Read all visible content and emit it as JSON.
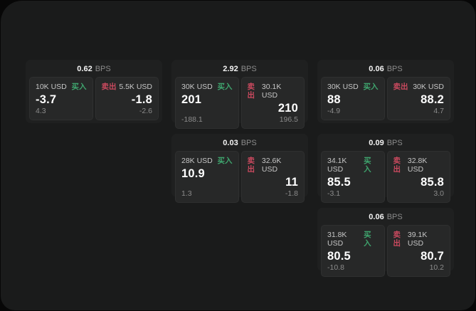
{
  "labels": {
    "bps_unit": "BPS",
    "buy_label": "买入",
    "sell_label": "卖出"
  },
  "colors": {
    "buy_green": "#3fa56e",
    "sell_red": "#c9495e",
    "window_bg": "#1a1b1b",
    "card_bg": "#1f2020",
    "panel_bg": "#272828"
  },
  "cards": [
    {
      "row": 1,
      "col": 1,
      "bps": "0.62",
      "buy": {
        "amount": "10K USD",
        "value": "-3.7",
        "delta": "4.3"
      },
      "sell": {
        "amount": "5.5K USD",
        "value": "-1.8",
        "delta": "-2.6"
      }
    },
    {
      "row": 1,
      "col": 2,
      "bps": "2.92",
      "buy": {
        "amount": "30K USD",
        "value": "201",
        "delta": "-188.1"
      },
      "sell": {
        "amount": "30.1K USD",
        "value": "210",
        "delta": "196.5"
      }
    },
    {
      "row": 1,
      "col": 3,
      "bps": "0.06",
      "buy": {
        "amount": "30K USD",
        "value": "88",
        "delta": "-4.9"
      },
      "sell": {
        "amount": "30K USD",
        "value": "88.2",
        "delta": "4.7"
      }
    },
    {
      "row": 2,
      "col": 2,
      "bps": "0.03",
      "buy": {
        "amount": "28K USD",
        "value": "10.9",
        "delta": "1.3"
      },
      "sell": {
        "amount": "32.6K USD",
        "value": "11",
        "delta": "-1.8"
      }
    },
    {
      "row": 2,
      "col": 3,
      "bps": "0.09",
      "buy": {
        "amount": "34.1K USD",
        "value": "85.5",
        "delta": "-3.1"
      },
      "sell": {
        "amount": "32.8K USD",
        "value": "85.8",
        "delta": "3.0"
      }
    },
    {
      "row": 3,
      "col": 3,
      "bps": "0.06",
      "buy": {
        "amount": "31.8K USD",
        "value": "80.5",
        "delta": "-10.8"
      },
      "sell": {
        "amount": "39.1K USD",
        "value": "80.7",
        "delta": "10.2"
      }
    }
  ]
}
